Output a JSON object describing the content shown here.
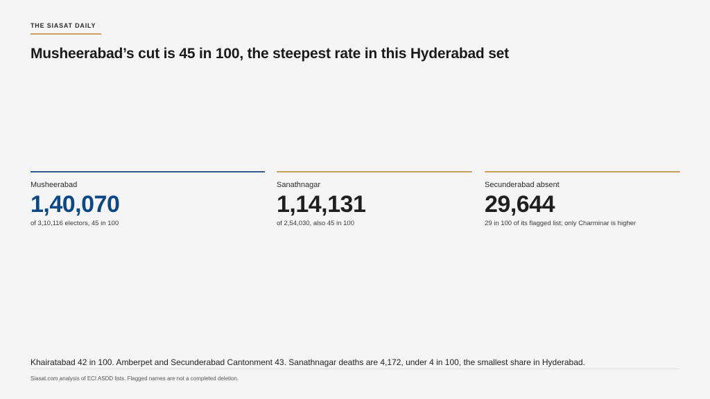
{
  "brand": "THE SIASAT DAILY",
  "headline": "Musheerabad’s cut is 45 in 100, the steepest rate in this Hyderabad set",
  "colors": {
    "accent_gold": "#c9a15a",
    "accent_blue": "#0d4785",
    "text_dark": "#1f1f1f",
    "background": "#f5f5f5"
  },
  "stats": [
    {
      "label": "Musheerabad",
      "value": "1,40,070",
      "note": "of 3,10,116 electors, 45 in 100",
      "value_color": "#0d4785",
      "rule_color": "#2f5a8a"
    },
    {
      "label": "Sanathnagar",
      "value": "1,14,131",
      "note": "of 2,54,030, also 45 in 100",
      "value_color": "#1f1f1f",
      "rule_color": "#c9a15a"
    },
    {
      "label": "Secunderabad absent",
      "value": "29,644",
      "note": "29 in 100 of its flagged list; only Charminar is higher",
      "value_color": "#1f1f1f",
      "rule_color": "#c9a15a"
    }
  ],
  "summary": "Khairatabad 42 in 100. Amberpet and Secunderabad Cantonment 43. Sanathnagar deaths are 4,172, under 4 in 100, the smallest share in Hyderabad.",
  "source": "Siasat.com analysis of ECI ASDD lists. Flagged names are not a completed deletion."
}
